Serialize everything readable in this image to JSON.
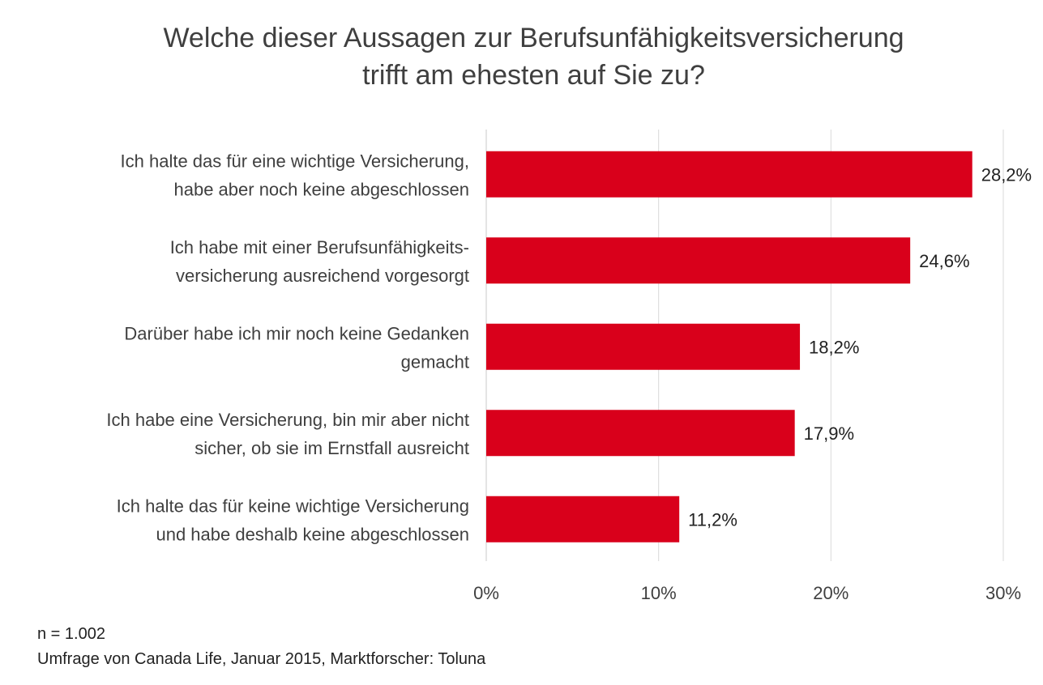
{
  "chart_data": {
    "type": "bar",
    "orientation": "horizontal",
    "title_lines": [
      "Welche dieser Aussagen zur Berufsunfähigkeitsversicherung",
      "trifft am ehesten auf Sie zu?"
    ],
    "categories": [
      [
        "Ich halte das für eine wichtige Versicherung,",
        "habe aber noch keine abgeschlossen"
      ],
      [
        "Ich habe mit einer Berufsunfähigkeits-",
        "versicherung ausreichend vorgesorgt"
      ],
      [
        "Darüber habe ich mir noch keine Gedanken",
        "gemacht"
      ],
      [
        "Ich habe eine Versicherung, bin mir aber nicht",
        "sicher, ob sie im Ernstfall ausreicht"
      ],
      [
        "Ich halte das für keine wichtige Versicherung",
        "und habe deshalb keine abgeschlossen"
      ]
    ],
    "values": [
      28.2,
      24.6,
      18.2,
      17.9,
      11.2
    ],
    "value_labels": [
      "28,2%",
      "24,6%",
      "18,2%",
      "17,9%",
      "11,2%"
    ],
    "xlim": [
      0,
      30
    ],
    "ticks": [
      0,
      10,
      20,
      30
    ],
    "tick_labels": [
      "0%",
      "10%",
      "20%",
      "30%"
    ],
    "grid": true,
    "bar_color": "#d9001b"
  },
  "footnotes": {
    "sample": "n = 1.002",
    "source": "Umfrage von Canada Life, Januar 2015, Marktforscher: Toluna"
  }
}
